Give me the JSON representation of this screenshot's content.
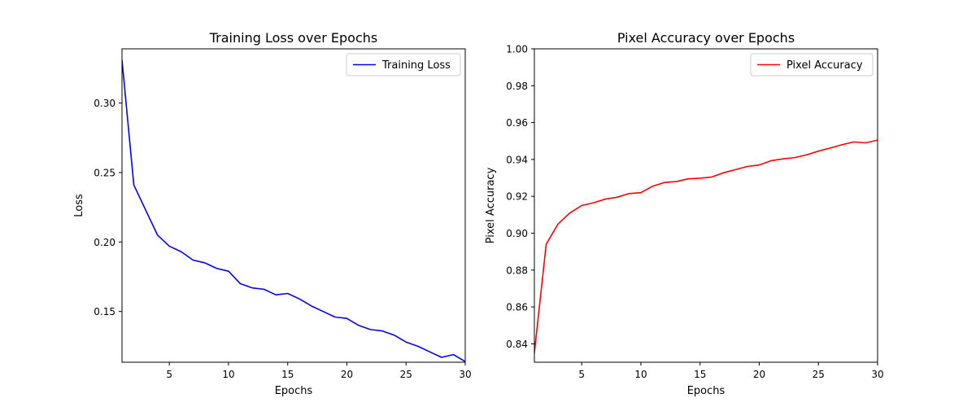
{
  "chart_data": [
    {
      "type": "line",
      "title": "Training Loss over Epochs",
      "xlabel": "Epochs",
      "ylabel": "Loss",
      "xlim": [
        1,
        30
      ],
      "ylim": [
        0.1135,
        0.339
      ],
      "xticks": [
        5,
        10,
        15,
        20,
        25,
        30
      ],
      "yticks": [
        0.15,
        0.2,
        0.25,
        0.3
      ],
      "ytick_labels": [
        "0.15",
        "0.20",
        "0.25",
        "0.30"
      ],
      "grid": false,
      "legend_position": "top-right",
      "series": [
        {
          "name": "Training Loss",
          "color": "#0000ff",
          "x": [
            1,
            2,
            3,
            4,
            5,
            6,
            7,
            8,
            9,
            10,
            11,
            12,
            13,
            14,
            15,
            16,
            17,
            18,
            19,
            20,
            21,
            22,
            23,
            24,
            25,
            26,
            27,
            28,
            29,
            30
          ],
          "y": [
            0.331,
            0.241,
            0.223,
            0.205,
            0.197,
            0.193,
            0.187,
            0.185,
            0.181,
            0.179,
            0.17,
            0.167,
            0.166,
            0.162,
            0.163,
            0.159,
            0.154,
            0.15,
            0.146,
            0.145,
            0.14,
            0.137,
            0.136,
            0.133,
            0.128,
            0.125,
            0.121,
            0.117,
            0.119,
            0.114
          ]
        }
      ]
    },
    {
      "type": "line",
      "title": "Pixel Accuracy over Epochs",
      "xlabel": "Epochs",
      "ylabel": "Pixel Accuracy",
      "xlim": [
        1,
        30
      ],
      "ylim": [
        0.83,
        1.0
      ],
      "xticks": [
        5,
        10,
        15,
        20,
        25,
        30
      ],
      "yticks": [
        0.84,
        0.86,
        0.88,
        0.9,
        0.92,
        0.94,
        0.96,
        0.98,
        1.0
      ],
      "ytick_labels": [
        "0.84",
        "0.86",
        "0.88",
        "0.90",
        "0.92",
        "0.94",
        "0.96",
        "0.98",
        "1.00"
      ],
      "grid": false,
      "legend_position": "top-right",
      "series": [
        {
          "name": "Pixel Accuracy",
          "color": "#ff0000",
          "x": [
            1,
            2,
            3,
            4,
            5,
            6,
            7,
            8,
            9,
            10,
            11,
            12,
            13,
            14,
            15,
            16,
            17,
            18,
            19,
            20,
            21,
            22,
            23,
            24,
            25,
            26,
            27,
            28,
            29,
            30
          ],
          "y": [
            0.835,
            0.894,
            0.905,
            0.911,
            0.915,
            0.9165,
            0.9185,
            0.9195,
            0.9215,
            0.922,
            0.9255,
            0.9275,
            0.928,
            0.9295,
            0.9298,
            0.9305,
            0.9328,
            0.9345,
            0.9362,
            0.937,
            0.9393,
            0.9403,
            0.941,
            0.9425,
            0.9445,
            0.9462,
            0.948,
            0.9495,
            0.949,
            0.9505
          ]
        }
      ]
    }
  ]
}
